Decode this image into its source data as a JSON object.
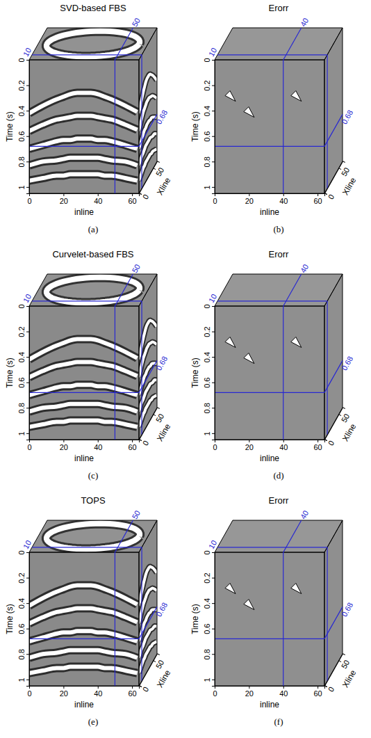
{
  "chart_data": [
    {
      "type": "seismic_cube",
      "title": "SVD-based FBS",
      "caption": "(a)",
      "xlabel": "inline",
      "ylabel": "Time (s)",
      "zlabel": "Xline",
      "xlim": [
        0,
        64
      ],
      "xticks": [
        0,
        20,
        40,
        60
      ],
      "ylim": [
        0,
        1.05
      ],
      "yticks": [
        0,
        0.2,
        0.4,
        0.6,
        0.8,
        1
      ],
      "zlim": [
        0,
        64
      ],
      "zticks": [
        0,
        50
      ],
      "slices": {
        "inline": 50,
        "xline": 10,
        "time": 0.68
      },
      "events": [
        {
          "x": [
            0,
            8,
            16,
            20,
            24,
            28,
            32,
            36,
            40,
            44,
            48,
            56,
            63
          ],
          "t": [
            0.42,
            0.36,
            0.31,
            0.29,
            0.27,
            0.26,
            0.26,
            0.26,
            0.27,
            0.29,
            0.31,
            0.36,
            0.41
          ]
        },
        {
          "x": [
            0,
            8,
            16,
            20,
            24,
            28,
            32,
            36,
            40,
            44,
            48,
            56,
            63
          ],
          "t": [
            0.56,
            0.51,
            0.47,
            0.46,
            0.45,
            0.44,
            0.44,
            0.44,
            0.45,
            0.46,
            0.47,
            0.51,
            0.55
          ]
        },
        {
          "x": [
            0,
            8,
            16,
            20,
            24,
            28,
            32,
            36,
            40,
            44,
            48,
            56,
            63
          ],
          "t": [
            0.7,
            0.67,
            0.64,
            0.63,
            0.63,
            0.62,
            0.62,
            0.62,
            0.63,
            0.63,
            0.64,
            0.67,
            0.7
          ]
        },
        {
          "x": [
            0,
            8,
            16,
            20,
            24,
            28,
            32,
            36,
            40,
            44,
            48,
            56,
            63
          ],
          "t": [
            0.83,
            0.8,
            0.79,
            0.78,
            0.77,
            0.77,
            0.77,
            0.77,
            0.77,
            0.78,
            0.79,
            0.8,
            0.83
          ]
        },
        {
          "x": [
            0,
            8,
            16,
            20,
            24,
            28,
            32,
            36,
            40,
            44,
            48,
            56,
            63
          ],
          "t": [
            0.95,
            0.93,
            0.91,
            0.91,
            0.9,
            0.9,
            0.9,
            0.9,
            0.9,
            0.91,
            0.91,
            0.93,
            0.95
          ]
        }
      ]
    },
    {
      "type": "error_cube",
      "title": "Erorr",
      "caption": "(b)",
      "xlabel": "inline",
      "ylabel": "Time (s)",
      "zlabel": "Xline",
      "xlim": [
        0,
        64
      ],
      "xticks": [
        0,
        20,
        40,
        60
      ],
      "ylim": [
        0,
        1.05
      ],
      "yticks": [
        0,
        0.2,
        0.4,
        0.6,
        0.8,
        1
      ],
      "zlim": [
        0,
        64
      ],
      "zticks": [
        0,
        50
      ],
      "slices": {
        "inline": 40,
        "xline": 10,
        "time": 0.68
      }
    },
    {
      "type": "seismic_cube",
      "title": "Curvelet-based FBS",
      "caption": "(c)",
      "xlabel": "inline",
      "ylabel": "Time (s)",
      "zlabel": "Xline",
      "xlim": [
        0,
        64
      ],
      "xticks": [
        0,
        20,
        40,
        60
      ],
      "ylim": [
        0,
        1.05
      ],
      "yticks": [
        0,
        0.2,
        0.4,
        0.6,
        0.8,
        1
      ],
      "zlim": [
        0,
        64
      ],
      "zticks": [
        0,
        50
      ],
      "slices": {
        "inline": 50,
        "xline": 10,
        "time": 0.68
      },
      "events": [
        {
          "x": [
            0,
            8,
            16,
            20,
            24,
            28,
            32,
            36,
            40,
            44,
            48,
            56,
            63
          ],
          "t": [
            0.42,
            0.36,
            0.31,
            0.29,
            0.27,
            0.26,
            0.26,
            0.26,
            0.27,
            0.29,
            0.31,
            0.36,
            0.41
          ]
        },
        {
          "x": [
            0,
            8,
            16,
            20,
            24,
            28,
            32,
            36,
            40,
            44,
            48,
            56,
            63
          ],
          "t": [
            0.56,
            0.51,
            0.47,
            0.46,
            0.45,
            0.44,
            0.44,
            0.44,
            0.45,
            0.46,
            0.47,
            0.51,
            0.55
          ]
        },
        {
          "x": [
            0,
            8,
            16,
            20,
            24,
            28,
            32,
            36,
            40,
            44,
            48,
            56,
            63
          ],
          "t": [
            0.7,
            0.67,
            0.64,
            0.63,
            0.63,
            0.62,
            0.62,
            0.62,
            0.63,
            0.63,
            0.64,
            0.67,
            0.7
          ]
        },
        {
          "x": [
            0,
            8,
            16,
            20,
            24,
            28,
            32,
            36,
            40,
            44,
            48,
            56,
            63
          ],
          "t": [
            0.83,
            0.8,
            0.79,
            0.78,
            0.77,
            0.77,
            0.77,
            0.77,
            0.77,
            0.78,
            0.79,
            0.8,
            0.83
          ]
        },
        {
          "x": [
            0,
            8,
            16,
            20,
            24,
            28,
            32,
            36,
            40,
            44,
            48,
            56,
            63
          ],
          "t": [
            0.95,
            0.93,
            0.91,
            0.91,
            0.9,
            0.9,
            0.9,
            0.9,
            0.9,
            0.91,
            0.91,
            0.93,
            0.95
          ]
        }
      ]
    },
    {
      "type": "error_cube",
      "title": "Erorr",
      "caption": "(d)",
      "xlabel": "inline",
      "ylabel": "Time (s)",
      "zlabel": "Xline",
      "xlim": [
        0,
        64
      ],
      "xticks": [
        0,
        20,
        40,
        60
      ],
      "ylim": [
        0,
        1.05
      ],
      "yticks": [
        0,
        0.2,
        0.4,
        0.6,
        0.8,
        1
      ],
      "zlim": [
        0,
        64
      ],
      "zticks": [
        0,
        50
      ],
      "slices": {
        "inline": 40,
        "xline": 10,
        "time": 0.68
      }
    },
    {
      "type": "seismic_cube",
      "title": "TOPS",
      "caption": "(e)",
      "xlabel": "inline",
      "ylabel": "Time (s)",
      "zlabel": "Xline",
      "xlim": [
        0,
        64
      ],
      "xticks": [
        0,
        20,
        40,
        60
      ],
      "ylim": [
        0,
        1.05
      ],
      "yticks": [
        0,
        0.2,
        0.4,
        0.6,
        0.8,
        1
      ],
      "zlim": [
        0,
        64
      ],
      "zticks": [
        0,
        50
      ],
      "slices": {
        "inline": 50,
        "xline": 10,
        "time": 0.68
      },
      "events": [
        {
          "x": [
            0,
            8,
            16,
            20,
            24,
            28,
            32,
            36,
            40,
            44,
            48,
            56,
            63
          ],
          "t": [
            0.42,
            0.36,
            0.31,
            0.29,
            0.27,
            0.26,
            0.26,
            0.26,
            0.27,
            0.29,
            0.31,
            0.36,
            0.41
          ]
        },
        {
          "x": [
            0,
            8,
            16,
            20,
            24,
            28,
            32,
            36,
            40,
            44,
            48,
            56,
            63
          ],
          "t": [
            0.56,
            0.51,
            0.47,
            0.46,
            0.45,
            0.44,
            0.44,
            0.44,
            0.45,
            0.46,
            0.47,
            0.51,
            0.55
          ]
        },
        {
          "x": [
            0,
            8,
            16,
            20,
            24,
            28,
            32,
            36,
            40,
            44,
            48,
            56,
            63
          ],
          "t": [
            0.7,
            0.67,
            0.64,
            0.63,
            0.63,
            0.62,
            0.62,
            0.62,
            0.63,
            0.63,
            0.64,
            0.67,
            0.7
          ]
        },
        {
          "x": [
            0,
            8,
            16,
            20,
            24,
            28,
            32,
            36,
            40,
            44,
            48,
            56,
            63
          ],
          "t": [
            0.83,
            0.8,
            0.79,
            0.78,
            0.77,
            0.77,
            0.77,
            0.77,
            0.77,
            0.78,
            0.79,
            0.8,
            0.83
          ]
        },
        {
          "x": [
            0,
            8,
            16,
            20,
            24,
            28,
            32,
            36,
            40,
            44,
            48,
            56,
            63
          ],
          "t": [
            0.95,
            0.93,
            0.91,
            0.91,
            0.9,
            0.9,
            0.9,
            0.9,
            0.9,
            0.91,
            0.91,
            0.93,
            0.95
          ]
        }
      ]
    },
    {
      "type": "error_cube",
      "title": "Erorr",
      "caption": "(f)",
      "xlabel": "inline",
      "ylabel": "Time (s)",
      "zlabel": "Xline",
      "xlim": [
        0,
        64
      ],
      "xticks": [
        0,
        20,
        40,
        60
      ],
      "ylim": [
        0,
        1.05
      ],
      "yticks": [
        0,
        0.2,
        0.4,
        0.6,
        0.8,
        1
      ],
      "zlim": [
        0,
        64
      ],
      "zticks": [
        0,
        50
      ],
      "slices": {
        "inline": 40,
        "xline": 10,
        "time": 0.68
      }
    }
  ]
}
